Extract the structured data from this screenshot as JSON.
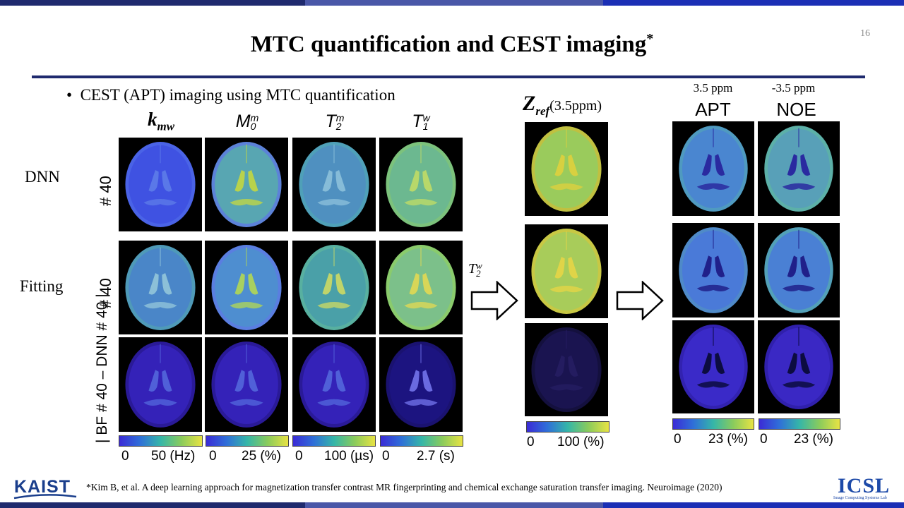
{
  "slide": {
    "number": "16",
    "title": "MTC quantification and CEST imaging",
    "title_mark": "*",
    "bullet": "CEST (APT) imaging using MTC quantification"
  },
  "rows": {
    "dnn": "DNN",
    "fitting": "Fitting",
    "id_label": "# 40",
    "diff_label": "| BF # 40 – DNN # 40 |"
  },
  "columns": {
    "kmw": "k",
    "kmw_sub": "mw",
    "m0": "M",
    "m0_sub": "0",
    "m0_sup": "m",
    "t2": "T",
    "t2_sub": "2",
    "t2_sup": "m",
    "t1": "T",
    "t1_sub": "1",
    "t1_sup": "w"
  },
  "zref": {
    "label": "Z",
    "label_sub": "ref",
    "label_tail": "(3.5ppm)",
    "arrow_label": "T",
    "arrow_sub": "2",
    "arrow_sup": "w",
    "cbar_min": "0",
    "cbar_max": "100 (%)"
  },
  "outputs": {
    "apt_ppm": "3.5 ppm",
    "noe_ppm": "-3.5 ppm",
    "apt": "APT",
    "noe": "NOE",
    "cbar_min": "0",
    "cbar_max": "23 (%)"
  },
  "colorbars": {
    "kmw": {
      "min": "0",
      "max": "50 (Hz)"
    },
    "m0": {
      "min": "0",
      "max": "25 (%)"
    },
    "t2": {
      "min": "0",
      "max": "100 (µs)"
    },
    "t1": {
      "min": "0",
      "max": "2.7 (s)"
    }
  },
  "footer": {
    "citation": "*Kim B, et al. A deep learning approach for magnetization transfer contrast MR fingerprinting and chemical exchange saturation transfer imaging. Neuroimage (2020)",
    "kaist": "KAIST",
    "icsl": "ICSL",
    "icsl_sub": "Image Computing Systems Lab"
  },
  "colors": {
    "navy": "#1f2a6e",
    "top_bar_light": "#4a57a8",
    "blue_bar": "#1b2fb5",
    "brain_blue": "#3d57e0",
    "brain_teal": "#4aa0b8",
    "brain_green": "#86c06a",
    "brain_dark": "#2b1f9a"
  }
}
